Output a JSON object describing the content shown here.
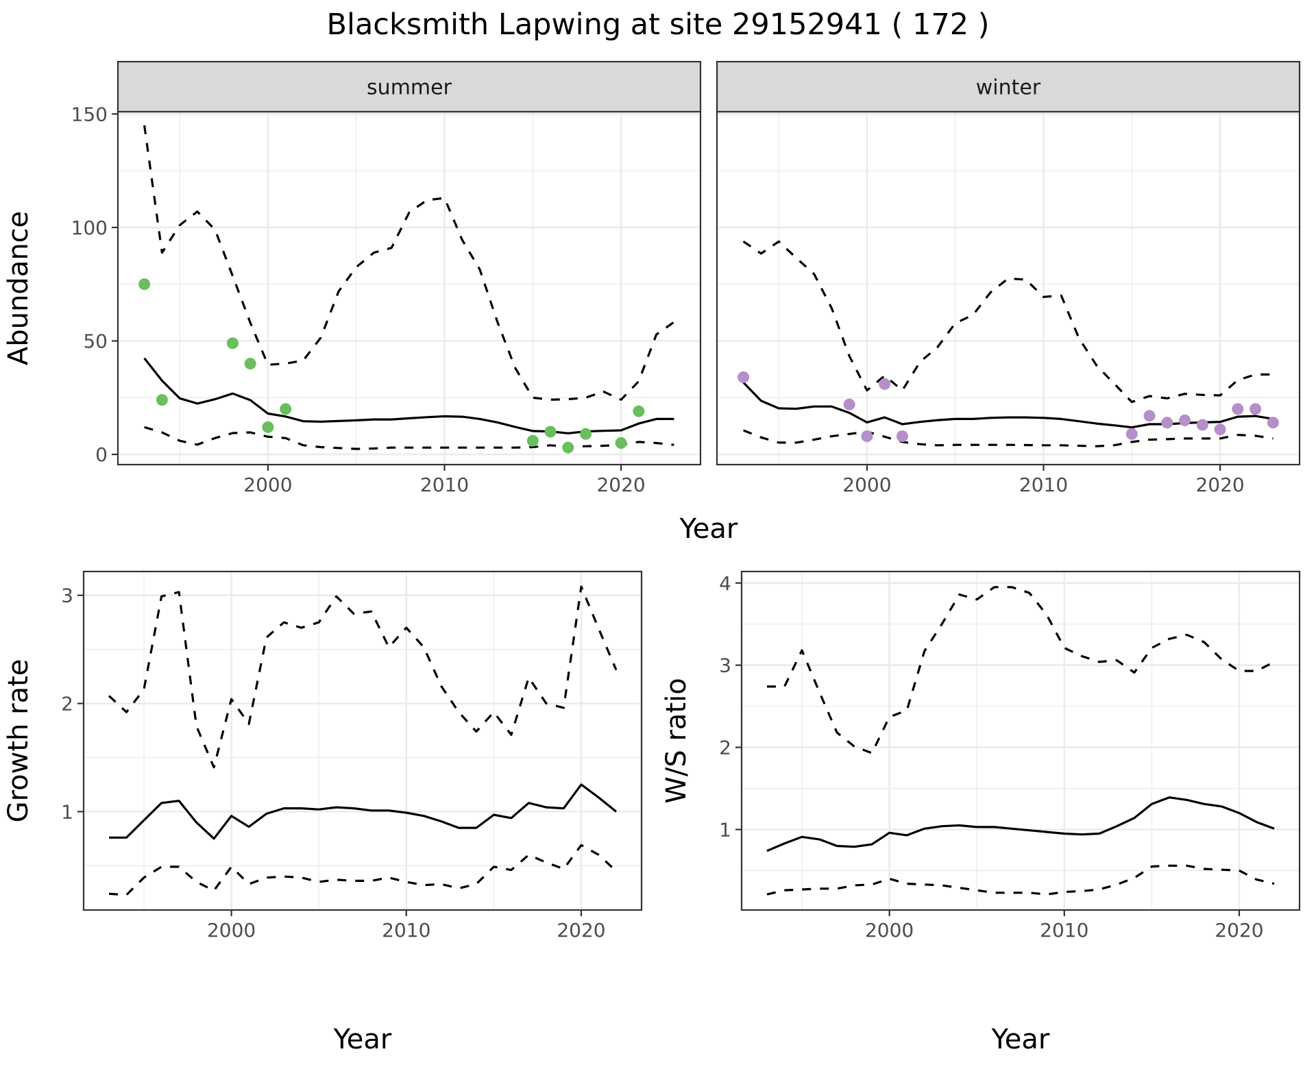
{
  "title": "Blacksmith Lapwing at site 29152941 ( 172 )",
  "colors": {
    "summer_points": "#6ABE5E",
    "winter_points": "#B48FC8",
    "line": "#000000",
    "strip_bg": "#D9D9D9",
    "grid": "#EBEBEB",
    "frame": "#333333"
  },
  "chart_data": [
    {
      "id": "abundance-summer",
      "type": "line",
      "facet": "summer",
      "title": "summer",
      "xlabel": "Year",
      "ylabel": "Abundance",
      "xlim": [
        1991.5,
        2024.5
      ],
      "ylim": [
        -4.5,
        151
      ],
      "xticks": [
        2000,
        2010,
        2020
      ],
      "yticks": [
        0,
        50,
        100,
        150
      ],
      "grid": true,
      "x": [
        1993,
        1994,
        1995,
        1996,
        1997,
        1998,
        1999,
        2000,
        2001,
        2002,
        2003,
        2004,
        2005,
        2006,
        2007,
        2008,
        2009,
        2010,
        2011,
        2012,
        2013,
        2014,
        2015,
        2016,
        2017,
        2018,
        2019,
        2020,
        2021,
        2022,
        2023
      ],
      "series": [
        {
          "name": "estimate",
          "style": "solid",
          "values": [
            42.4,
            32.5,
            24.7,
            22.4,
            24.3,
            26.8,
            23.9,
            18.0,
            16.7,
            14.6,
            14.4,
            14.7,
            15.0,
            15.4,
            15.4,
            15.9,
            16.4,
            16.8,
            16.6,
            15.6,
            14.1,
            12.1,
            10.3,
            10.1,
            9.3,
            10.1,
            10.4,
            10.6,
            13.6,
            15.6,
            15.6
          ]
        },
        {
          "name": "upper",
          "style": "dashed",
          "values": [
            145,
            88.9,
            101,
            107,
            99,
            78.7,
            58,
            39.5,
            40,
            41.4,
            51.5,
            71.8,
            82.5,
            88.9,
            91,
            106.6,
            112,
            113,
            94.5,
            81.5,
            58.3,
            38.2,
            25,
            24.1,
            24.3,
            25,
            27.7,
            24.1,
            32.2,
            52.8,
            58.3
          ]
        },
        {
          "name": "lower",
          "style": "dashed",
          "values": [
            12,
            9.7,
            6,
            4.3,
            7.2,
            9.4,
            9.7,
            7.8,
            7.2,
            4,
            3.2,
            2.8,
            2.4,
            2.6,
            3,
            3,
            3,
            3,
            3,
            3,
            3,
            3,
            3.2,
            4,
            3.4,
            3.6,
            3.8,
            4.2,
            5.5,
            5,
            4.2
          ]
        }
      ],
      "points": {
        "name": "observed",
        "x": [
          1993,
          1994,
          1998,
          1999,
          2000,
          2001,
          2015,
          2016,
          2017,
          2018,
          2020,
          2021
        ],
        "y": [
          75,
          24,
          49,
          40,
          12,
          20,
          6,
          10,
          3,
          9,
          5,
          19
        ]
      }
    },
    {
      "id": "abundance-winter",
      "type": "line",
      "facet": "winter",
      "title": "winter",
      "xlabel": "Year",
      "ylabel": "Abundance",
      "xlim": [
        1991.5,
        2024.5
      ],
      "ylim": [
        -4.5,
        151
      ],
      "xticks": [
        2000,
        2010,
        2020
      ],
      "yticks": [
        0,
        50,
        100,
        150
      ],
      "grid": true,
      "x": [
        1993,
        1994,
        1995,
        1996,
        1997,
        1998,
        1999,
        2000,
        2001,
        2002,
        2003,
        2004,
        2005,
        2006,
        2007,
        2008,
        2009,
        2010,
        2011,
        2012,
        2013,
        2014,
        2015,
        2016,
        2017,
        2018,
        2019,
        2020,
        2021,
        2022,
        2023
      ],
      "series": [
        {
          "name": "estimate",
          "style": "solid",
          "values": [
            31.7,
            23.6,
            20.3,
            20.1,
            21.1,
            21.1,
            18.3,
            14.1,
            16.3,
            13.3,
            14.3,
            15.1,
            15.6,
            15.6,
            16.1,
            16.3,
            16.3,
            16.1,
            15.6,
            14.6,
            13.6,
            12.8,
            11.9,
            13.3,
            13.3,
            13.8,
            14.1,
            14.3,
            16.6,
            16.9,
            15.6
          ]
        },
        {
          "name": "upper",
          "style": "dashed",
          "values": [
            93.8,
            88.5,
            93.8,
            86.5,
            79.5,
            64.4,
            43.3,
            28.2,
            34.7,
            28.2,
            40.7,
            47.3,
            57.8,
            61.4,
            71.4,
            77.5,
            77,
            69.4,
            70,
            51.3,
            39.2,
            31.2,
            23.1,
            25.7,
            24.7,
            26.7,
            26.2,
            26,
            32.7,
            35.2,
            35.2
          ]
        },
        {
          "name": "lower",
          "style": "dashed",
          "values": [
            10.6,
            7.5,
            5.2,
            5.2,
            6.5,
            8,
            9,
            10,
            7.8,
            5.5,
            4.5,
            4,
            4.2,
            4.2,
            4.2,
            4.2,
            4.1,
            4,
            4,
            3.8,
            3.6,
            4,
            5.5,
            6.5,
            6.7,
            7,
            7,
            7,
            8.6,
            8.2,
            7
          ]
        }
      ],
      "points": {
        "name": "observed",
        "x": [
          1993,
          1999,
          2000,
          2001,
          2002,
          2015,
          2016,
          2017,
          2018,
          2019,
          2020,
          2021,
          2022,
          2023
        ],
        "y": [
          34,
          22,
          8,
          31,
          8,
          9,
          17,
          14,
          15,
          13,
          11,
          20,
          20,
          14
        ]
      }
    },
    {
      "id": "growth-rate",
      "type": "line",
      "title": "",
      "xlabel": "Year",
      "ylabel": "Growth rate",
      "xlim": [
        1991.55,
        2023.45
      ],
      "ylim": [
        0.09,
        3.22
      ],
      "xticks": [
        2000,
        2010,
        2020
      ],
      "yticks": [
        1,
        2,
        3
      ],
      "grid": true,
      "x": [
        1993,
        1994,
        1995,
        1996,
        1997,
        1998,
        1999,
        2000,
        2001,
        2002,
        2003,
        2004,
        2005,
        2006,
        2007,
        2008,
        2009,
        2010,
        2011,
        2012,
        2013,
        2014,
        2015,
        2016,
        2017,
        2018,
        2019,
        2020,
        2021,
        2022
      ],
      "series": [
        {
          "name": "estimate",
          "style": "solid",
          "values": [
            0.76,
            0.76,
            0.92,
            1.08,
            1.1,
            0.9,
            0.75,
            0.96,
            0.86,
            0.98,
            1.03,
            1.03,
            1.02,
            1.04,
            1.03,
            1.01,
            1.01,
            0.99,
            0.96,
            0.91,
            0.85,
            0.85,
            0.97,
            0.94,
            1.08,
            1.04,
            1.03,
            1.25,
            1.13,
            1.0
          ]
        },
        {
          "name": "upper",
          "style": "dashed",
          "values": [
            2.07,
            1.92,
            2.13,
            2.99,
            3.03,
            1.79,
            1.41,
            2.04,
            1.81,
            2.61,
            2.75,
            2.7,
            2.75,
            2.99,
            2.83,
            2.85,
            2.52,
            2.7,
            2.52,
            2.16,
            1.92,
            1.74,
            1.92,
            1.71,
            2.24,
            2.0,
            1.96,
            3.08,
            2.69,
            2.31
          ]
        },
        {
          "name": "lower",
          "style": "dashed",
          "values": [
            0.24,
            0.23,
            0.39,
            0.49,
            0.49,
            0.35,
            0.27,
            0.49,
            0.33,
            0.39,
            0.4,
            0.39,
            0.35,
            0.37,
            0.36,
            0.36,
            0.39,
            0.35,
            0.32,
            0.33,
            0.29,
            0.33,
            0.49,
            0.46,
            0.6,
            0.53,
            0.47,
            0.69,
            0.6,
            0.45
          ]
        }
      ]
    },
    {
      "id": "ws-ratio",
      "type": "line",
      "title": "",
      "xlabel": "Year",
      "ylabel": "W/S ratio",
      "xlim": [
        1991.55,
        2023.45
      ],
      "ylim": [
        0.02,
        4.14
      ],
      "xticks": [
        2000,
        2010,
        2020
      ],
      "yticks": [
        1,
        2,
        3,
        4
      ],
      "grid": true,
      "x": [
        1993,
        1994,
        1995,
        1996,
        1997,
        1998,
        1999,
        2000,
        2001,
        2002,
        2003,
        2004,
        2005,
        2006,
        2007,
        2008,
        2009,
        2010,
        2011,
        2012,
        2013,
        2014,
        2015,
        2016,
        2017,
        2018,
        2019,
        2020,
        2021,
        2022
      ],
      "series": [
        {
          "name": "estimate",
          "style": "solid",
          "values": [
            0.74,
            0.83,
            0.91,
            0.88,
            0.8,
            0.79,
            0.82,
            0.96,
            0.93,
            1.01,
            1.04,
            1.05,
            1.03,
            1.03,
            1.01,
            0.99,
            0.97,
            0.95,
            0.94,
            0.95,
            1.04,
            1.14,
            1.31,
            1.39,
            1.36,
            1.31,
            1.28,
            1.2,
            1.09,
            1.01
          ]
        },
        {
          "name": "upper",
          "style": "dashed",
          "values": [
            2.74,
            2.74,
            3.18,
            2.67,
            2.18,
            2.01,
            1.93,
            2.37,
            2.45,
            3.17,
            3.5,
            3.86,
            3.8,
            3.95,
            3.95,
            3.88,
            3.61,
            3.21,
            3.11,
            3.04,
            3.06,
            2.91,
            3.21,
            3.32,
            3.37,
            3.28,
            3.07,
            2.93,
            2.93,
            3.04
          ]
        },
        {
          "name": "lower",
          "style": "dashed",
          "values": [
            0.21,
            0.26,
            0.27,
            0.28,
            0.28,
            0.32,
            0.33,
            0.4,
            0.34,
            0.33,
            0.32,
            0.29,
            0.26,
            0.23,
            0.23,
            0.23,
            0.21,
            0.24,
            0.25,
            0.27,
            0.33,
            0.41,
            0.55,
            0.56,
            0.56,
            0.52,
            0.51,
            0.5,
            0.39,
            0.34
          ]
        }
      ]
    }
  ]
}
